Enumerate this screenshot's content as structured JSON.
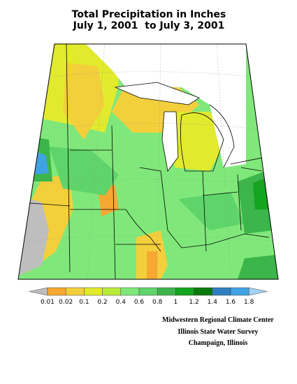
{
  "header": {
    "title": "Total Precipitation in Inches",
    "subtitle": "July 1, 2001  to July 3, 2001"
  },
  "legend": {
    "ticks": [
      0.01,
      0.02,
      0.1,
      0.2,
      0.4,
      0.6,
      0.8,
      1,
      1.2,
      1.4,
      1.6,
      1.8
    ],
    "colors": [
      "#bebebe",
      "#f7a832",
      "#f3cf3c",
      "#e2ea2e",
      "#b9ea3a",
      "#80e87a",
      "#5fd46a",
      "#3cb54a",
      "#14a41e",
      "#0a7a0a",
      "#2f7fc0",
      "#3fa2e2",
      "#a3d3f6"
    ]
  },
  "credits": [
    "Midwestern Regional Climate Center",
    "Illinois State Water Survey",
    "Champaign, Illinois"
  ]
}
